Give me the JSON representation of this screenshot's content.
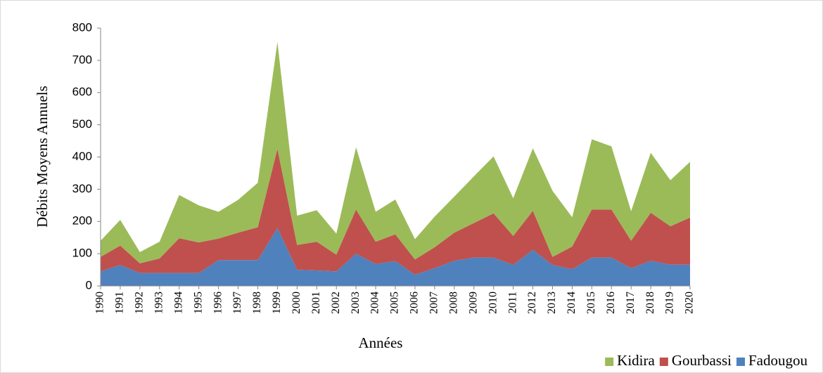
{
  "chart_data": {
    "type": "stacked_area",
    "xlabel": "Années",
    "ylabel": "Débits Moyens Annuels",
    "categories": [
      "1990",
      "1991",
      "1992",
      "1993",
      "1994",
      "1995",
      "1996",
      "1997",
      "1998",
      "1999",
      "2000",
      "2001",
      "2002",
      "2003",
      "2004",
      "2005",
      "2006",
      "2007",
      "2008",
      "2009",
      "2010",
      "2011",
      "2012",
      "2013",
      "2014",
      "2015",
      "2016",
      "2017",
      "2018",
      "2019",
      "2020"
    ],
    "series": [
      {
        "name": "Fadougou",
        "color": "#4f81bd",
        "values": [
          45,
          65,
          40,
          40,
          40,
          40,
          80,
          80,
          80,
          180,
          50,
          48,
          45,
          100,
          68,
          77,
          35,
          55,
          78,
          88,
          88,
          65,
          112,
          65,
          52,
          88,
          88,
          55,
          78,
          66,
          66
        ]
      },
      {
        "name": "Gourbassi",
        "color": "#c0504d",
        "values": [
          45,
          60,
          30,
          45,
          108,
          95,
          67,
          85,
          102,
          245,
          77,
          89,
          52,
          137,
          69,
          83,
          47,
          65,
          87,
          107,
          137,
          90,
          121,
          25,
          70,
          149,
          149,
          85,
          149,
          119,
          146
        ]
      },
      {
        "name": "Kidira",
        "color": "#9bbb59",
        "values": [
          50,
          80,
          35,
          52,
          134,
          115,
          83,
          102,
          138,
          332,
          91,
          98,
          65,
          193,
          93,
          108,
          63,
          95,
          112,
          145,
          177,
          117,
          194,
          205,
          91,
          218,
          196,
          92,
          186,
          143,
          173
        ]
      }
    ],
    "ylim": [
      0,
      800
    ],
    "yticks": [
      0,
      100,
      200,
      300,
      400,
      500,
      600,
      700,
      800
    ],
    "legend": "bottom-right"
  }
}
